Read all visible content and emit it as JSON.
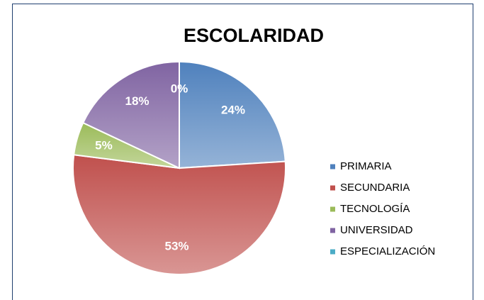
{
  "chart_data": {
    "type": "pie",
    "title": "ESCOLARIDAD",
    "categories": [
      "PRIMARIA",
      "SECUNDARIA",
      "TECNOLOGÍA",
      "UNIVERSIDAD",
      "ESPECIALIZACIÓN"
    ],
    "values": [
      24,
      53,
      5,
      18,
      0
    ],
    "value_labels": [
      "24%",
      "53%",
      "5%",
      "18%",
      "0%"
    ],
    "colors": [
      "#4f81bd",
      "#c0504d",
      "#9bbb59",
      "#8064a2",
      "#4bacc6"
    ],
    "legend": "right"
  }
}
